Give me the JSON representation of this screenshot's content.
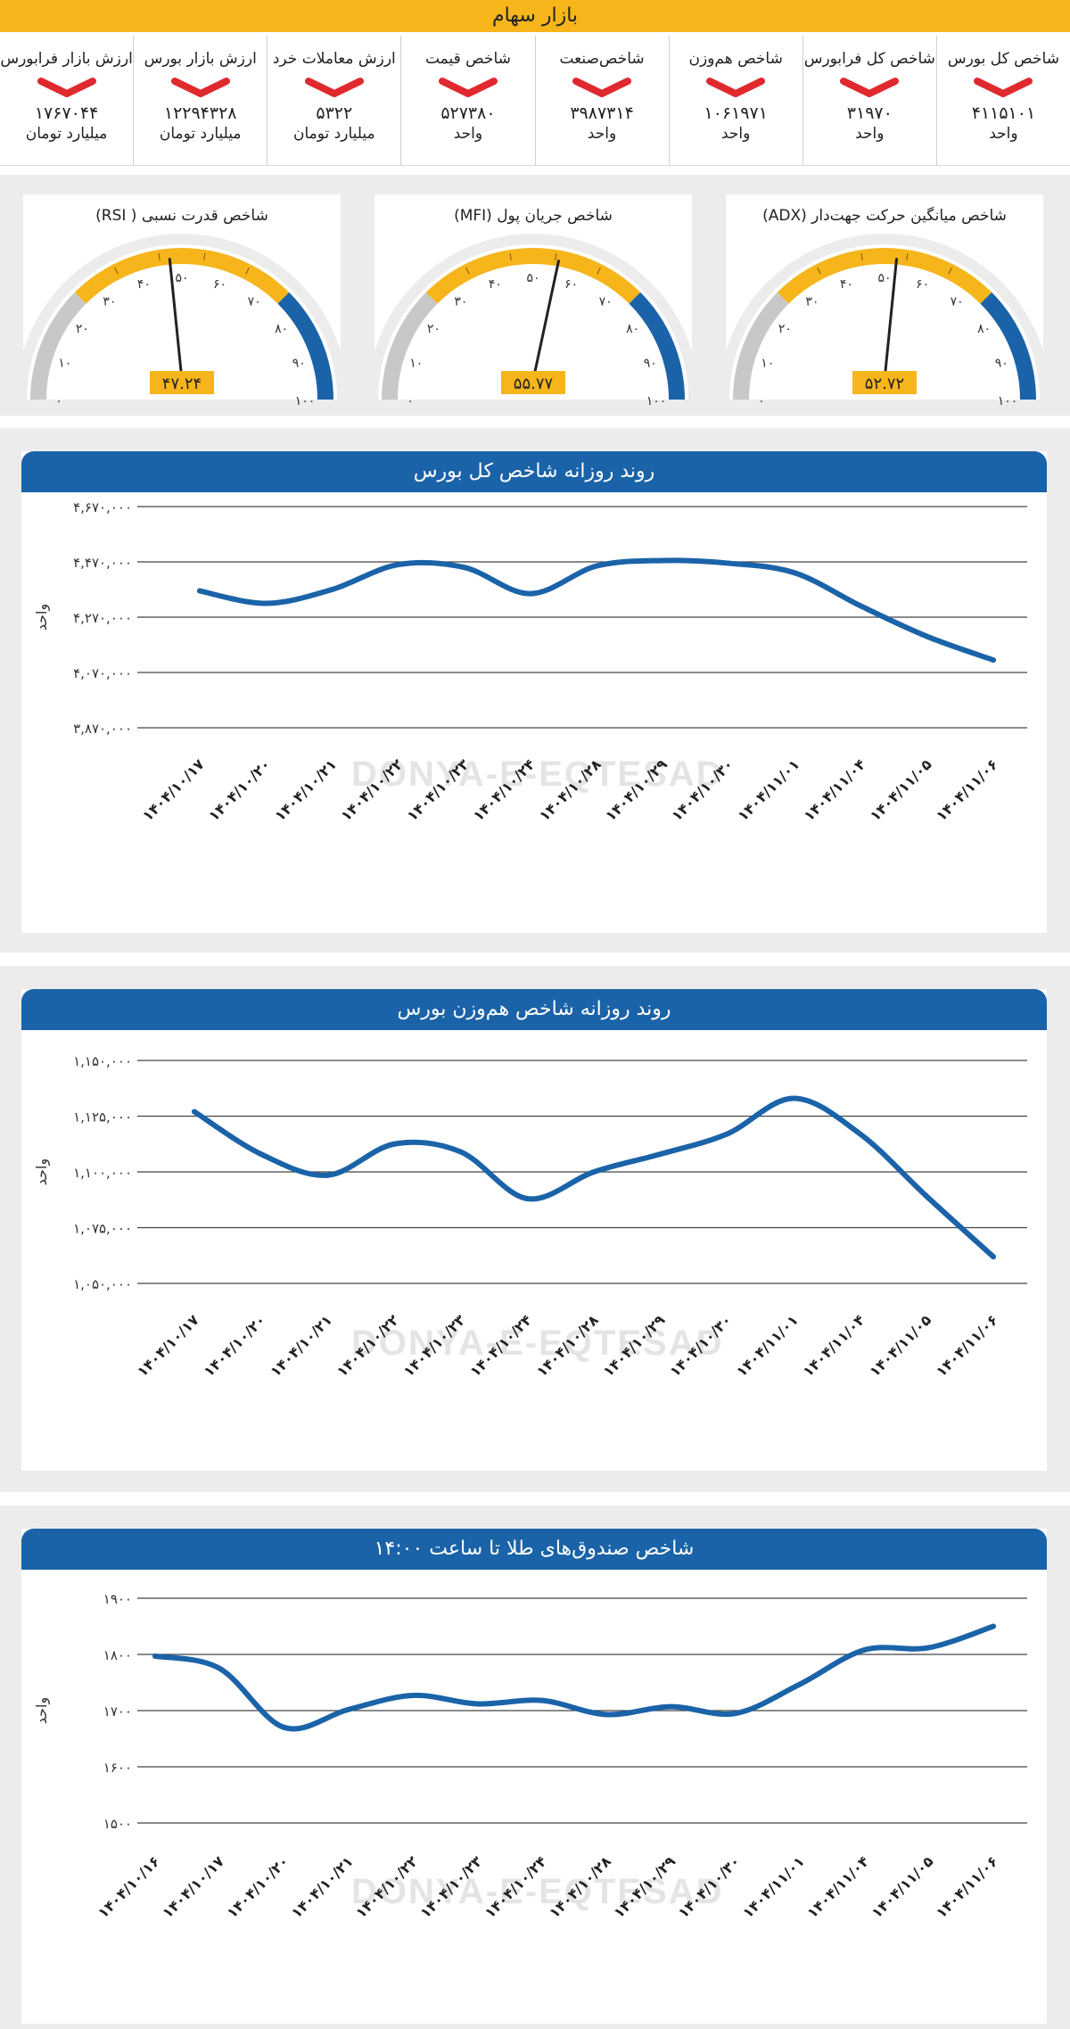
{
  "header": {
    "title": "بازار سهام"
  },
  "stats": [
    {
      "label": "شاخص کل بورس",
      "value": "۴۱۱۵۱۰۱",
      "unit": "واحد"
    },
    {
      "label": "شاخص کل فرابورس",
      "value": "۳۱۹۷۰",
      "unit": "واحد"
    },
    {
      "label": "شاخص هم‌وزن",
      "value": "۱۰۶۱۹۷۱",
      "unit": "واحد"
    },
    {
      "label": "شاخص‌صنعت",
      "value": "۳۹۸۷۳۱۴",
      "unit": "واحد"
    },
    {
      "label": "شاخص قیمت",
      "value": "۵۲۷۳۸۰",
      "unit": "واحد"
    },
    {
      "label": "ارزش معاملات خرد",
      "value": "۵۳۲۲",
      "unit": "میلیارد تومان"
    },
    {
      "label": "ارزش بازار بورس",
      "value": "۱۲۲۹۴۳۲۸",
      "unit": "میلیارد تومان"
    },
    {
      "label": "ارزش بازار فرابورس",
      "value": "۱۷۶۷۰۴۴",
      "unit": "میلیارد تومان"
    }
  ],
  "gauges": [
    {
      "title": "شاخص میانگین حرکت جهت‌دار (ADX)",
      "value": 52.72,
      "display": "۵۲.۷۲",
      "ticks": [
        "۰",
        "۱۰",
        "۲۰",
        "۳۰",
        "۴۰",
        "۵۰",
        "۶۰",
        "۷۰",
        "۸۰",
        "۹۰",
        "۱۰۰"
      ]
    },
    {
      "title": "شاخص جریان پول (MFI)",
      "value": 55.77,
      "display": "۵۵.۷۷",
      "ticks": [
        "۰",
        "۱۰",
        "۲۰",
        "۳۰",
        "۴۰",
        "۵۰",
        "۶۰",
        "۷۰",
        "۸۰",
        "۹۰",
        "۱۰۰"
      ]
    },
    {
      "title": "شاخص قدرت نسبی ( RSI)",
      "value": 47.24,
      "display": "۴۷.۲۴",
      "ticks": [
        "۰",
        "۱۰",
        "۲۰",
        "۳۰",
        "۴۰",
        "۵۰",
        "۶۰",
        "۷۰",
        "۸۰",
        "۹۰",
        "۱۰۰"
      ]
    }
  ],
  "colors": {
    "accent": "#f5b51b",
    "blue": "#1b63a8",
    "gray": "#c8c8c8",
    "red": "#e0292e",
    "needle": "#222222"
  },
  "watermark": "DONYA-E-EQTESAD",
  "chart_data": [
    {
      "type": "line",
      "title": "روند روزانه شاخص کل بورس",
      "ylabel": "واحد",
      "ylim": [
        3870000,
        4670000
      ],
      "yticks": [
        3870000,
        4070000,
        4270000,
        4470000,
        4670000
      ],
      "ytick_labels": [
        "۳,۸۷۰,۰۰۰",
        "۴,۰۷۰,۰۰۰",
        "۴,۲۷۰,۰۰۰",
        "۴,۴۷۰,۰۰۰",
        "۴,۶۷۰,۰۰۰"
      ],
      "categories": [
        "۱۴۰۴/۱۰/۱۷",
        "۱۴۰۴/۱۰/۲۰",
        "۱۴۰۴/۱۰/۲۱",
        "۱۴۰۴/۱۰/۲۲",
        "۱۴۰۴/۱۰/۲۳",
        "۱۴۰۴/۱۰/۲۴",
        "۱۴۰۴/۱۰/۲۸",
        "۱۴۰۴/۱۰/۲۹",
        "۱۴۰۴/۱۰/۳۰",
        "۱۴۰۴/۱۱/۰۱",
        "۱۴۰۴/۱۱/۰۴",
        "۱۴۰۴/۱۱/۰۵",
        "۱۴۰۴/۱۱/۰۶"
      ],
      "series": [
        {
          "name": "شاخص کل بورس",
          "values": [
            4365000,
            4320000,
            4370000,
            4460000,
            4450000,
            4355000,
            4455000,
            4475000,
            4465000,
            4430000,
            4310000,
            4200000,
            4115101
          ]
        }
      ]
    },
    {
      "type": "line",
      "title": "روند روزانه شاخص هم‌وزن بورس",
      "ylabel": "واحد",
      "ylim": [
        1050000,
        1150000
      ],
      "yticks": [
        1050000,
        1075000,
        1100000,
        1125000,
        1150000
      ],
      "ytick_labels": [
        "۱,۰۵۰,۰۰۰",
        "۱,۰۷۵,۰۰۰",
        "۱,۱۰۰,۰۰۰",
        "۱,۱۲۵,۰۰۰",
        "۱,۱۵۰,۰۰۰"
      ],
      "categories": [
        "۱۴۰۴/۱۰/۱۷",
        "۱۴۰۴/۱۰/۲۰",
        "۱۴۰۴/۱۰/۲۱",
        "۱۴۰۴/۱۰/۲۲",
        "۱۴۰۴/۱۰/۲۳",
        "۱۴۰۴/۱۰/۲۴",
        "۱۴۰۴/۱۰/۲۸",
        "۱۴۰۴/۱۰/۲۹",
        "۱۴۰۴/۱۰/۳۰",
        "۱۴۰۴/۱۱/۰۱",
        "۱۴۰۴/۱۱/۰۴",
        "۱۴۰۴/۱۱/۰۵",
        "۱۴۰۴/۱۱/۰۶"
      ],
      "series": [
        {
          "name": "شاخص هم‌وزن",
          "values": [
            1127000,
            1108000,
            1098500,
            1112500,
            1109000,
            1088000,
            1100000,
            1108000,
            1117000,
            1133000,
            1117000,
            1089000,
            1061971
          ]
        }
      ]
    },
    {
      "type": "line",
      "title": "شاخص صندوق‌های طلا تا ساعت ۱۴:۰۰",
      "ylabel": "واحد",
      "ylim": [
        1500,
        1900
      ],
      "yticks": [
        1500,
        1600,
        1700,
        1800,
        1900
      ],
      "ytick_labels": [
        "۱۵۰۰",
        "۱۶۰۰",
        "۱۷۰۰",
        "۱۸۰۰",
        "۱۹۰۰"
      ],
      "categories": [
        "۱۴۰۴/۱۰/۱۶",
        "۱۴۰۴/۱۰/۱۷",
        "۱۴۰۴/۱۰/۲۰",
        "۱۴۰۴/۱۰/۲۱",
        "۱۴۰۴/۱۰/۲۲",
        "۱۴۰۴/۱۰/۲۳",
        "۱۴۰۴/۱۰/۲۴",
        "۱۴۰۴/۱۰/۲۸",
        "۱۴۰۴/۱۰/۲۹",
        "۱۴۰۴/۱۰/۳۰",
        "۱۴۰۴/۱۱/۰۱",
        "۱۴۰۴/۱۱/۰۴",
        "۱۴۰۴/۱۱/۰۵",
        "۱۴۰۴/۱۱/۰۶"
      ],
      "series": [
        {
          "name": "شاخص صندوق‌های طلا",
          "values": [
            1797,
            1775,
            1670,
            1702,
            1727,
            1712,
            1718,
            1693,
            1707,
            1695,
            1747,
            1808,
            1812,
            1850
          ]
        }
      ]
    }
  ]
}
